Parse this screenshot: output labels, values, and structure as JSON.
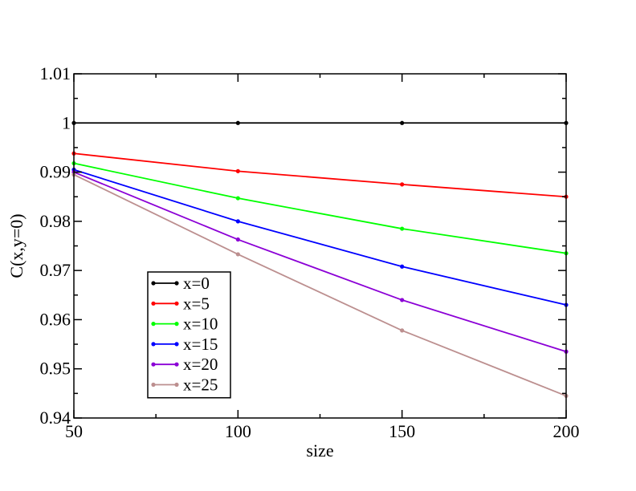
{
  "chart_data": {
    "type": "line",
    "title": "",
    "xlabel": "size",
    "ylabel": "C(x,y=0)",
    "x": [
      50,
      100,
      150,
      200
    ],
    "xlim": [
      50,
      200
    ],
    "ylim": [
      0.94,
      1.01
    ],
    "xticks": [
      50,
      100,
      150,
      200
    ],
    "yticks": [
      0.94,
      0.95,
      0.96,
      0.97,
      0.98,
      0.99,
      1,
      1.01
    ],
    "ytick_labels": [
      "0.94",
      "0.95",
      "0.96",
      "0.97",
      "0.98",
      "0.99",
      "1",
      "1.01"
    ],
    "grid": false,
    "legend_position": "bottom-left",
    "series": [
      {
        "name": "x=0",
        "color": "#000000",
        "values": [
          1.0,
          1.0,
          1.0,
          1.0
        ]
      },
      {
        "name": "x=5",
        "color": "#ff0000",
        "values": [
          0.9938,
          0.9902,
          0.9875,
          0.985
        ]
      },
      {
        "name": "x=10",
        "color": "#00ff00",
        "values": [
          0.9918,
          0.9847,
          0.9785,
          0.9735
        ]
      },
      {
        "name": "x=15",
        "color": "#0000ff",
        "values": [
          0.9905,
          0.98,
          0.9708,
          0.963
        ]
      },
      {
        "name": "x=20",
        "color": "#8b00d6",
        "values": [
          0.99,
          0.9763,
          0.964,
          0.9535
        ]
      },
      {
        "name": "x=25",
        "color": "#bc8f8f",
        "values": [
          0.9895,
          0.9733,
          0.9578,
          0.9445
        ]
      }
    ]
  }
}
